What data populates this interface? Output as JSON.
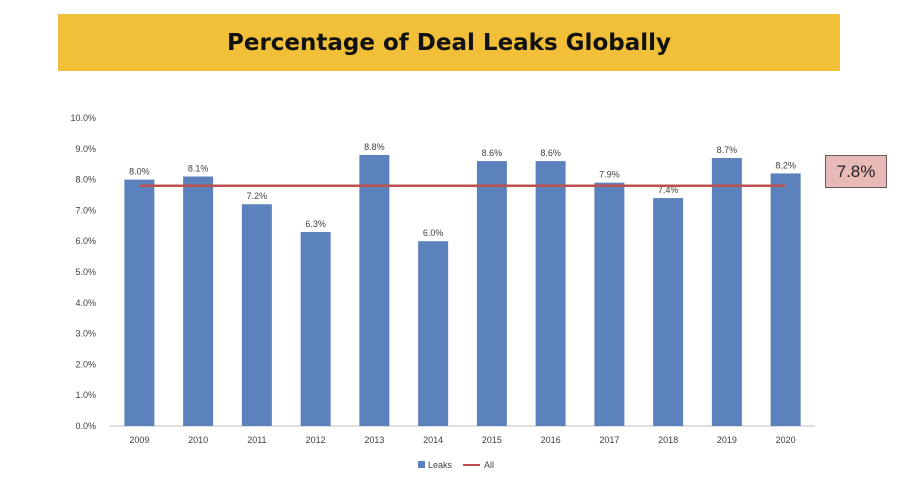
{
  "title": "Percentage of Deal Leaks Globally",
  "colors": {
    "banner": "#f2c038",
    "bar": "#5b82bc",
    "line": "#c0504d",
    "callout_bg": "#e7b9b7"
  },
  "callout": {
    "text": "7.8%"
  },
  "chart_data": {
    "type": "bar",
    "title": "Percentage of Deal Leaks Globally",
    "categories": [
      "2009",
      "2010",
      "2011",
      "2012",
      "2013",
      "2014",
      "2015",
      "2016",
      "2017",
      "2018",
      "2019",
      "2020"
    ],
    "series": [
      {
        "name": "Leaks",
        "type": "bar",
        "values": [
          8.0,
          8.1,
          7.2,
          6.3,
          8.8,
          6.0,
          8.6,
          8.6,
          7.9,
          7.4,
          8.7,
          8.2
        ]
      },
      {
        "name": "All",
        "type": "line",
        "values": [
          7.8,
          7.8,
          7.8,
          7.8,
          7.8,
          7.8,
          7.8,
          7.8,
          7.8,
          7.8,
          7.8,
          7.8
        ]
      }
    ],
    "data_labels": [
      "8.0%",
      "8.1%",
      "7.2%",
      "6.3%",
      "8.8%",
      "6.0%",
      "8.6%",
      "8.6%",
      "7.9%",
      "7.4%",
      "8.7%",
      "8.2%"
    ],
    "y_ticks": [
      "0.0%",
      "1.0%",
      "2.0%",
      "3.0%",
      "4.0%",
      "5.0%",
      "6.0%",
      "7.0%",
      "8.0%",
      "9.0%",
      "10.0%"
    ],
    "ylim": [
      0,
      10
    ],
    "grid": false,
    "legend": {
      "position": "bottom",
      "entries": [
        "Leaks",
        "All"
      ]
    }
  }
}
